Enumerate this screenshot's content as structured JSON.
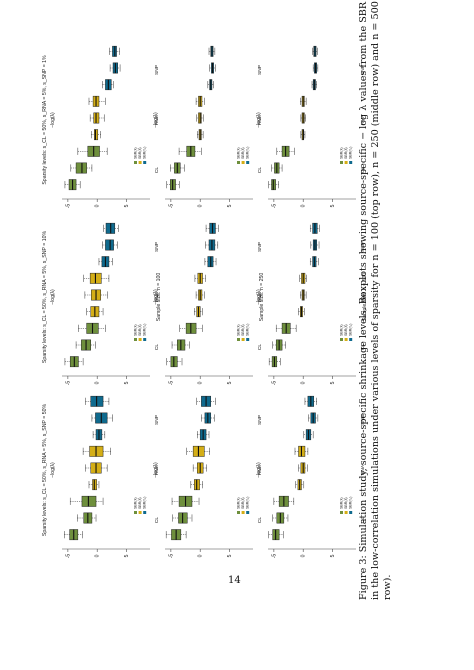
{
  "page": {
    "page_number": "14",
    "caption_lines": [
      "Figure 3: Simulation study, source-specific shrinkage levels. Boxplots showing source-specific − log λ values from the SBR methods",
      "in the low-correlation simulations under various levels of sparsity for n = 100 (top row), n = 250 (middle row) and n = 500 (bottom",
      "row)."
    ]
  },
  "figure": {
    "column_titles": [
      "Sparsity levels: s_CL = 50%, s_RNA = 5%, s_SNP = 1%",
      "Sparsity levels: s_CL = 50%, s_RNA = 5%, s_SNP = 10%",
      "Sparsity levels: s_CL = 50%, s_RNA = 5%, s_SNP = 50%"
    ],
    "row_labels": [
      "Sample size: n = 100",
      "Sample size: n = 250",
      "Sample size: n = 500"
    ],
    "y_axis_label": "−log(λ)",
    "categories": [
      "CL",
      "RNA",
      "SNP"
    ],
    "legend_labels": [
      "SBR(λ)",
      "SBR(λ̂)",
      "SBR(ℓ₀)"
    ],
    "colors": {
      "CL": "#6e8f3c",
      "RNA": "#d4ae16",
      "SNP": "#0f6a8e",
      "line": "#222222"
    }
  },
  "chart_data": [
    {
      "type": "box",
      "row": 1,
      "col": 1,
      "ylim": [
        -6,
        9
      ],
      "yticks": [
        5,
        0,
        -5
      ],
      "boxes": [
        {
          "cat": "CL",
          "method": 1,
          "min": -5.5,
          "q1": -4.8,
          "median": -4.2,
          "q3": -3.6,
          "max": -2.9
        },
        {
          "cat": "CL",
          "method": 2,
          "min": -4.5,
          "q1": -3.6,
          "median": -2.6,
          "q3": -1.8,
          "max": -0.9
        },
        {
          "cat": "CL",
          "method": 3,
          "min": -3.3,
          "q1": -1.6,
          "median": -0.6,
          "q3": 0.4,
          "max": 1.7
        },
        {
          "cat": "RNA",
          "method": 1,
          "min": -1.0,
          "q1": -0.5,
          "median": -0.3,
          "q3": 0.1,
          "max": 0.6
        },
        {
          "cat": "RNA",
          "method": 2,
          "min": -1.2,
          "q1": -0.6,
          "median": -0.2,
          "q3": 0.3,
          "max": 1.2
        },
        {
          "cat": "RNA",
          "method": 3,
          "min": -1.4,
          "q1": -0.7,
          "median": -0.2,
          "q3": 0.3,
          "max": 1.4
        },
        {
          "cat": "SNP",
          "method": 1,
          "min": 0.9,
          "q1": 1.4,
          "median": 1.9,
          "q3": 2.4,
          "max": 2.8
        },
        {
          "cat": "SNP",
          "method": 2,
          "min": 2.2,
          "q1": 2.7,
          "median": 3.1,
          "q3": 3.5,
          "max": 3.9
        },
        {
          "cat": "SNP",
          "method": 3,
          "min": 2.1,
          "q1": 2.6,
          "median": 3.0,
          "q3": 3.3,
          "max": 3.8
        }
      ]
    },
    {
      "type": "box",
      "row": 1,
      "col": 2,
      "ylim": [
        -6,
        9
      ],
      "yticks": [
        5,
        0,
        -5
      ],
      "boxes": [
        {
          "cat": "CL",
          "method": 1,
          "min": -5.5,
          "q1": -4.6,
          "median": -3.9,
          "q3": -3.2,
          "max": -2.4
        },
        {
          "cat": "CL",
          "method": 2,
          "min": -3.6,
          "q1": -2.7,
          "median": -1.9,
          "q3": -1.1,
          "max": -0.3
        },
        {
          "cat": "CL",
          "method": 3,
          "min": -3.2,
          "q1": -1.8,
          "median": -0.8,
          "q3": 0.2,
          "max": 1.4
        },
        {
          "cat": "RNA",
          "method": 1,
          "min": -1.8,
          "q1": -1.1,
          "median": -0.4,
          "q3": 0.3,
          "max": 1.0
        },
        {
          "cat": "RNA",
          "method": 2,
          "min": -2.1,
          "q1": -1.0,
          "median": -0.2,
          "q3": 0.6,
          "max": 1.8
        },
        {
          "cat": "RNA",
          "method": 3,
          "min": -2.3,
          "q1": -1.2,
          "median": -0.3,
          "q3": 0.7,
          "max": 2.0
        },
        {
          "cat": "SNP",
          "method": 1,
          "min": 0.3,
          "q1": 0.8,
          "median": 1.4,
          "q3": 2.0,
          "max": 2.6
        },
        {
          "cat": "SNP",
          "method": 2,
          "min": 0.9,
          "q1": 1.4,
          "median": 2.2,
          "q3": 2.8,
          "max": 3.5
        },
        {
          "cat": "SNP",
          "method": 3,
          "min": 1.1,
          "q1": 1.5,
          "median": 2.3,
          "q3": 3.0,
          "max": 3.6
        }
      ]
    },
    {
      "type": "box",
      "row": 1,
      "col": 3,
      "ylim": [
        -6,
        9
      ],
      "yticks": [
        5,
        0,
        -5
      ],
      "boxes": [
        {
          "cat": "CL",
          "method": 1,
          "min": -5.6,
          "q1": -4.7,
          "median": -4.0,
          "q3": -3.3,
          "max": -2.5
        },
        {
          "cat": "CL",
          "method": 2,
          "min": -3.4,
          "q1": -2.3,
          "median": -1.6,
          "q3": -0.9,
          "max": -0.2
        },
        {
          "cat": "CL",
          "method": 3,
          "min": -4.6,
          "q1": -2.6,
          "median": -1.5,
          "q3": -0.2,
          "max": 1.0
        },
        {
          "cat": "RNA",
          "method": 1,
          "min": -1.4,
          "q1": -0.8,
          "median": -0.5,
          "q3": -0.1,
          "max": 0.3
        },
        {
          "cat": "RNA",
          "method": 2,
          "min": -2.0,
          "q1": -1.1,
          "median": -0.2,
          "q3": 0.7,
          "max": 1.7
        },
        {
          "cat": "RNA",
          "method": 3,
          "min": -2.4,
          "q1": -1.3,
          "median": -0.2,
          "q3": 1.0,
          "max": 2.3
        },
        {
          "cat": "SNP",
          "method": 1,
          "min": -0.7,
          "q1": -0.2,
          "median": 0.3,
          "q3": 0.8,
          "max": 1.3
        },
        {
          "cat": "SNP",
          "method": 2,
          "min": -0.9,
          "q1": -0.3,
          "median": 0.7,
          "q3": 1.7,
          "max": 2.6
        },
        {
          "cat": "SNP",
          "method": 3,
          "min": -2.0,
          "q1": -1.1,
          "median": -0.1,
          "q3": 1.0,
          "max": 2.0
        }
      ]
    },
    {
      "type": "box",
      "row": 2,
      "col": 1,
      "ylim": [
        -6,
        9
      ],
      "yticks": [
        5,
        0,
        -5
      ],
      "boxes": [
        {
          "cat": "CL",
          "method": 1,
          "min": -5.7,
          "q1": -5.1,
          "median": -4.7,
          "q3": -4.2,
          "max": -3.5
        },
        {
          "cat": "CL",
          "method": 2,
          "min": -5.1,
          "q1": -4.4,
          "median": -3.9,
          "q3": -3.4,
          "max": -2.7
        },
        {
          "cat": "CL",
          "method": 3,
          "min": -3.6,
          "q1": -2.3,
          "median": -1.6,
          "q3": -0.9,
          "max": 0.2
        },
        {
          "cat": "RNA",
          "method": 1,
          "min": -0.5,
          "q1": -0.2,
          "median": 0.0,
          "q3": 0.2,
          "max": 0.5
        },
        {
          "cat": "RNA",
          "method": 2,
          "min": -0.6,
          "q1": -0.3,
          "median": 0.0,
          "q3": 0.2,
          "max": 0.6
        },
        {
          "cat": "RNA",
          "method": 3,
          "min": -0.7,
          "q1": -0.3,
          "median": 0.0,
          "q3": 0.3,
          "max": 0.7
        },
        {
          "cat": "SNP",
          "method": 1,
          "min": 1.3,
          "q1": 1.6,
          "median": 1.8,
          "q3": 2.0,
          "max": 2.3
        },
        {
          "cat": "SNP",
          "method": 2,
          "min": 1.6,
          "q1": 1.9,
          "median": 2.1,
          "q3": 2.3,
          "max": 2.6
        },
        {
          "cat": "SNP",
          "method": 3,
          "min": 1.5,
          "q1": 1.8,
          "median": 2.0,
          "q3": 2.2,
          "max": 2.5
        }
      ]
    },
    {
      "type": "box",
      "row": 2,
      "col": 2,
      "ylim": [
        -6,
        9
      ],
      "yticks": [
        5,
        0,
        -5
      ],
      "boxes": [
        {
          "cat": "CL",
          "method": 1,
          "min": -5.7,
          "q1": -5.0,
          "median": -4.5,
          "q3": -3.9,
          "max": -3.1
        },
        {
          "cat": "CL",
          "method": 2,
          "min": -4.8,
          "q1": -3.9,
          "median": -3.3,
          "q3": -2.6,
          "max": -1.8
        },
        {
          "cat": "CL",
          "method": 3,
          "min": -3.5,
          "q1": -2.4,
          "median": -1.6,
          "q3": -0.7,
          "max": 0.4
        },
        {
          "cat": "RNA",
          "method": 1,
          "min": -1.0,
          "q1": -0.6,
          "median": -0.3,
          "q3": 0.0,
          "max": 0.4
        },
        {
          "cat": "RNA",
          "method": 2,
          "min": -0.7,
          "q1": -0.3,
          "median": 0.0,
          "q3": 0.3,
          "max": 0.7
        },
        {
          "cat": "RNA",
          "method": 3,
          "min": -0.9,
          "q1": -0.4,
          "median": 0.0,
          "q3": 0.4,
          "max": 0.9
        },
        {
          "cat": "SNP",
          "method": 1,
          "min": 0.8,
          "q1": 1.3,
          "median": 1.8,
          "q3": 2.2,
          "max": 2.7
        },
        {
          "cat": "SNP",
          "method": 2,
          "min": 0.9,
          "q1": 1.5,
          "median": 2.0,
          "q3": 2.5,
          "max": 3.0
        },
        {
          "cat": "SNP",
          "method": 3,
          "min": 1.0,
          "q1": 1.6,
          "median": 2.1,
          "q3": 2.6,
          "max": 3.1
        }
      ]
    },
    {
      "type": "box",
      "row": 2,
      "col": 3,
      "ylim": [
        -6,
        9
      ],
      "yticks": [
        5,
        0,
        -5
      ],
      "boxes": [
        {
          "cat": "CL",
          "method": 1,
          "min": -5.8,
          "q1": -4.9,
          "median": -4.1,
          "q3": -3.3,
          "max": -2.4
        },
        {
          "cat": "CL",
          "method": 2,
          "min": -4.7,
          "q1": -3.7,
          "median": -3.0,
          "q3": -2.2,
          "max": -1.4
        },
        {
          "cat": "CL",
          "method": 3,
          "min": -4.8,
          "q1": -3.6,
          "median": -2.5,
          "q3": -1.4,
          "max": -0.2
        },
        {
          "cat": "RNA",
          "method": 1,
          "min": -1.6,
          "q1": -1.0,
          "median": -0.6,
          "q3": -0.1,
          "max": 0.4
        },
        {
          "cat": "RNA",
          "method": 2,
          "min": -1.2,
          "q1": -0.5,
          "median": 0.0,
          "q3": 0.5,
          "max": 1.1
        },
        {
          "cat": "RNA",
          "method": 3,
          "min": -2.3,
          "q1": -1.2,
          "median": -0.3,
          "q3": 0.7,
          "max": 1.6
        },
        {
          "cat": "SNP",
          "method": 1,
          "min": -0.5,
          "q1": 0.0,
          "median": 0.5,
          "q3": 1.0,
          "max": 1.5
        },
        {
          "cat": "SNP",
          "method": 2,
          "min": 0.2,
          "q1": 0.8,
          "median": 1.3,
          "q3": 1.8,
          "max": 2.4
        },
        {
          "cat": "SNP",
          "method": 3,
          "min": -0.6,
          "q1": 0.2,
          "median": 1.0,
          "q3": 1.8,
          "max": 2.6
        }
      ]
    },
    {
      "type": "box",
      "row": 3,
      "col": 1,
      "ylim": [
        -6,
        9
      ],
      "yticks": [
        5,
        0,
        -5
      ],
      "boxes": [
        {
          "cat": "CL",
          "method": 1,
          "min": -5.9,
          "q1": -5.4,
          "median": -5.1,
          "q3": -4.7,
          "max": -4.2
        },
        {
          "cat": "CL",
          "method": 2,
          "min": -5.4,
          "q1": -4.9,
          "median": -4.5,
          "q3": -4.1,
          "max": -3.6
        },
        {
          "cat": "CL",
          "method": 3,
          "min": -4.5,
          "q1": -3.6,
          "median": -3.0,
          "q3": -2.4,
          "max": -1.5
        },
        {
          "cat": "RNA",
          "method": 1,
          "min": -0.4,
          "q1": -0.2,
          "median": 0.0,
          "q3": 0.1,
          "max": 0.3
        },
        {
          "cat": "RNA",
          "method": 2,
          "min": -0.4,
          "q1": -0.2,
          "median": 0.0,
          "q3": 0.2,
          "max": 0.4
        },
        {
          "cat": "RNA",
          "method": 3,
          "min": -0.5,
          "q1": -0.2,
          "median": 0.0,
          "q3": 0.2,
          "max": 0.5
        },
        {
          "cat": "SNP",
          "method": 1,
          "min": 1.5,
          "q1": 1.7,
          "median": 1.9,
          "q3": 2.1,
          "max": 2.3
        },
        {
          "cat": "SNP",
          "method": 2,
          "min": 1.7,
          "q1": 1.9,
          "median": 2.1,
          "q3": 2.3,
          "max": 2.5
        },
        {
          "cat": "SNP",
          "method": 3,
          "min": 1.6,
          "q1": 1.8,
          "median": 2.0,
          "q3": 2.2,
          "max": 2.4
        }
      ]
    },
    {
      "type": "box",
      "row": 3,
      "col": 2,
      "ylim": [
        -6,
        9
      ],
      "yticks": [
        5,
        0,
        -5
      ],
      "boxes": [
        {
          "cat": "CL",
          "method": 1,
          "min": -5.8,
          "q1": -5.3,
          "median": -4.9,
          "q3": -4.5,
          "max": -3.9
        },
        {
          "cat": "CL",
          "method": 2,
          "min": -5.2,
          "q1": -4.6,
          "median": -4.1,
          "q3": -3.6,
          "max": -3.0
        },
        {
          "cat": "CL",
          "method": 3,
          "min": -4.6,
          "q1": -3.6,
          "median": -2.9,
          "q3": -2.2,
          "max": -1.2
        },
        {
          "cat": "RNA",
          "method": 1,
          "min": -0.8,
          "q1": -0.5,
          "median": -0.3,
          "q3": -0.1,
          "max": 0.2
        },
        {
          "cat": "RNA",
          "method": 2,
          "min": -0.5,
          "q1": -0.2,
          "median": 0.0,
          "q3": 0.2,
          "max": 0.5
        },
        {
          "cat": "RNA",
          "method": 3,
          "min": -0.6,
          "q1": -0.3,
          "median": 0.0,
          "q3": 0.3,
          "max": 0.6
        },
        {
          "cat": "SNP",
          "method": 1,
          "min": 1.2,
          "q1": 1.6,
          "median": 1.9,
          "q3": 2.2,
          "max": 2.6
        },
        {
          "cat": "SNP",
          "method": 2,
          "min": 1.3,
          "q1": 1.7,
          "median": 2.0,
          "q3": 2.3,
          "max": 2.7
        },
        {
          "cat": "SNP",
          "method": 3,
          "min": 1.2,
          "q1": 1.6,
          "median": 2.0,
          "q3": 2.4,
          "max": 2.8
        }
      ]
    },
    {
      "type": "box",
      "row": 3,
      "col": 3,
      "ylim": [
        -6,
        9
      ],
      "yticks": [
        5,
        0,
        -5
      ],
      "boxes": [
        {
          "cat": "CL",
          "method": 1,
          "min": -5.9,
          "q1": -5.2,
          "median": -4.7,
          "q3": -4.1,
          "max": -3.4
        },
        {
          "cat": "CL",
          "method": 2,
          "min": -5.2,
          "q1": -4.5,
          "median": -3.9,
          "q3": -3.3,
          "max": -2.6
        },
        {
          "cat": "CL",
          "method": 3,
          "min": -5.0,
          "q1": -4.1,
          "median": -3.3,
          "q3": -2.5,
          "max": -1.6
        },
        {
          "cat": "RNA",
          "method": 1,
          "min": -1.3,
          "q1": -0.9,
          "median": -0.6,
          "q3": -0.3,
          "max": 0.1
        },
        {
          "cat": "RNA",
          "method": 2,
          "min": -0.8,
          "q1": -0.4,
          "median": 0.0,
          "q3": 0.3,
          "max": 0.7
        },
        {
          "cat": "RNA",
          "method": 3,
          "min": -1.4,
          "q1": -0.8,
          "median": -0.3,
          "q3": 0.3,
          "max": 0.8
        },
        {
          "cat": "SNP",
          "method": 1,
          "min": 0.1,
          "q1": 0.5,
          "median": 0.9,
          "q3": 1.3,
          "max": 1.7
        },
        {
          "cat": "SNP",
          "method": 2,
          "min": 0.9,
          "q1": 1.3,
          "median": 1.7,
          "q3": 2.1,
          "max": 2.5
        },
        {
          "cat": "SNP",
          "method": 3,
          "min": 0.3,
          "q1": 0.8,
          "median": 1.3,
          "q3": 1.8,
          "max": 2.3
        }
      ]
    }
  ]
}
